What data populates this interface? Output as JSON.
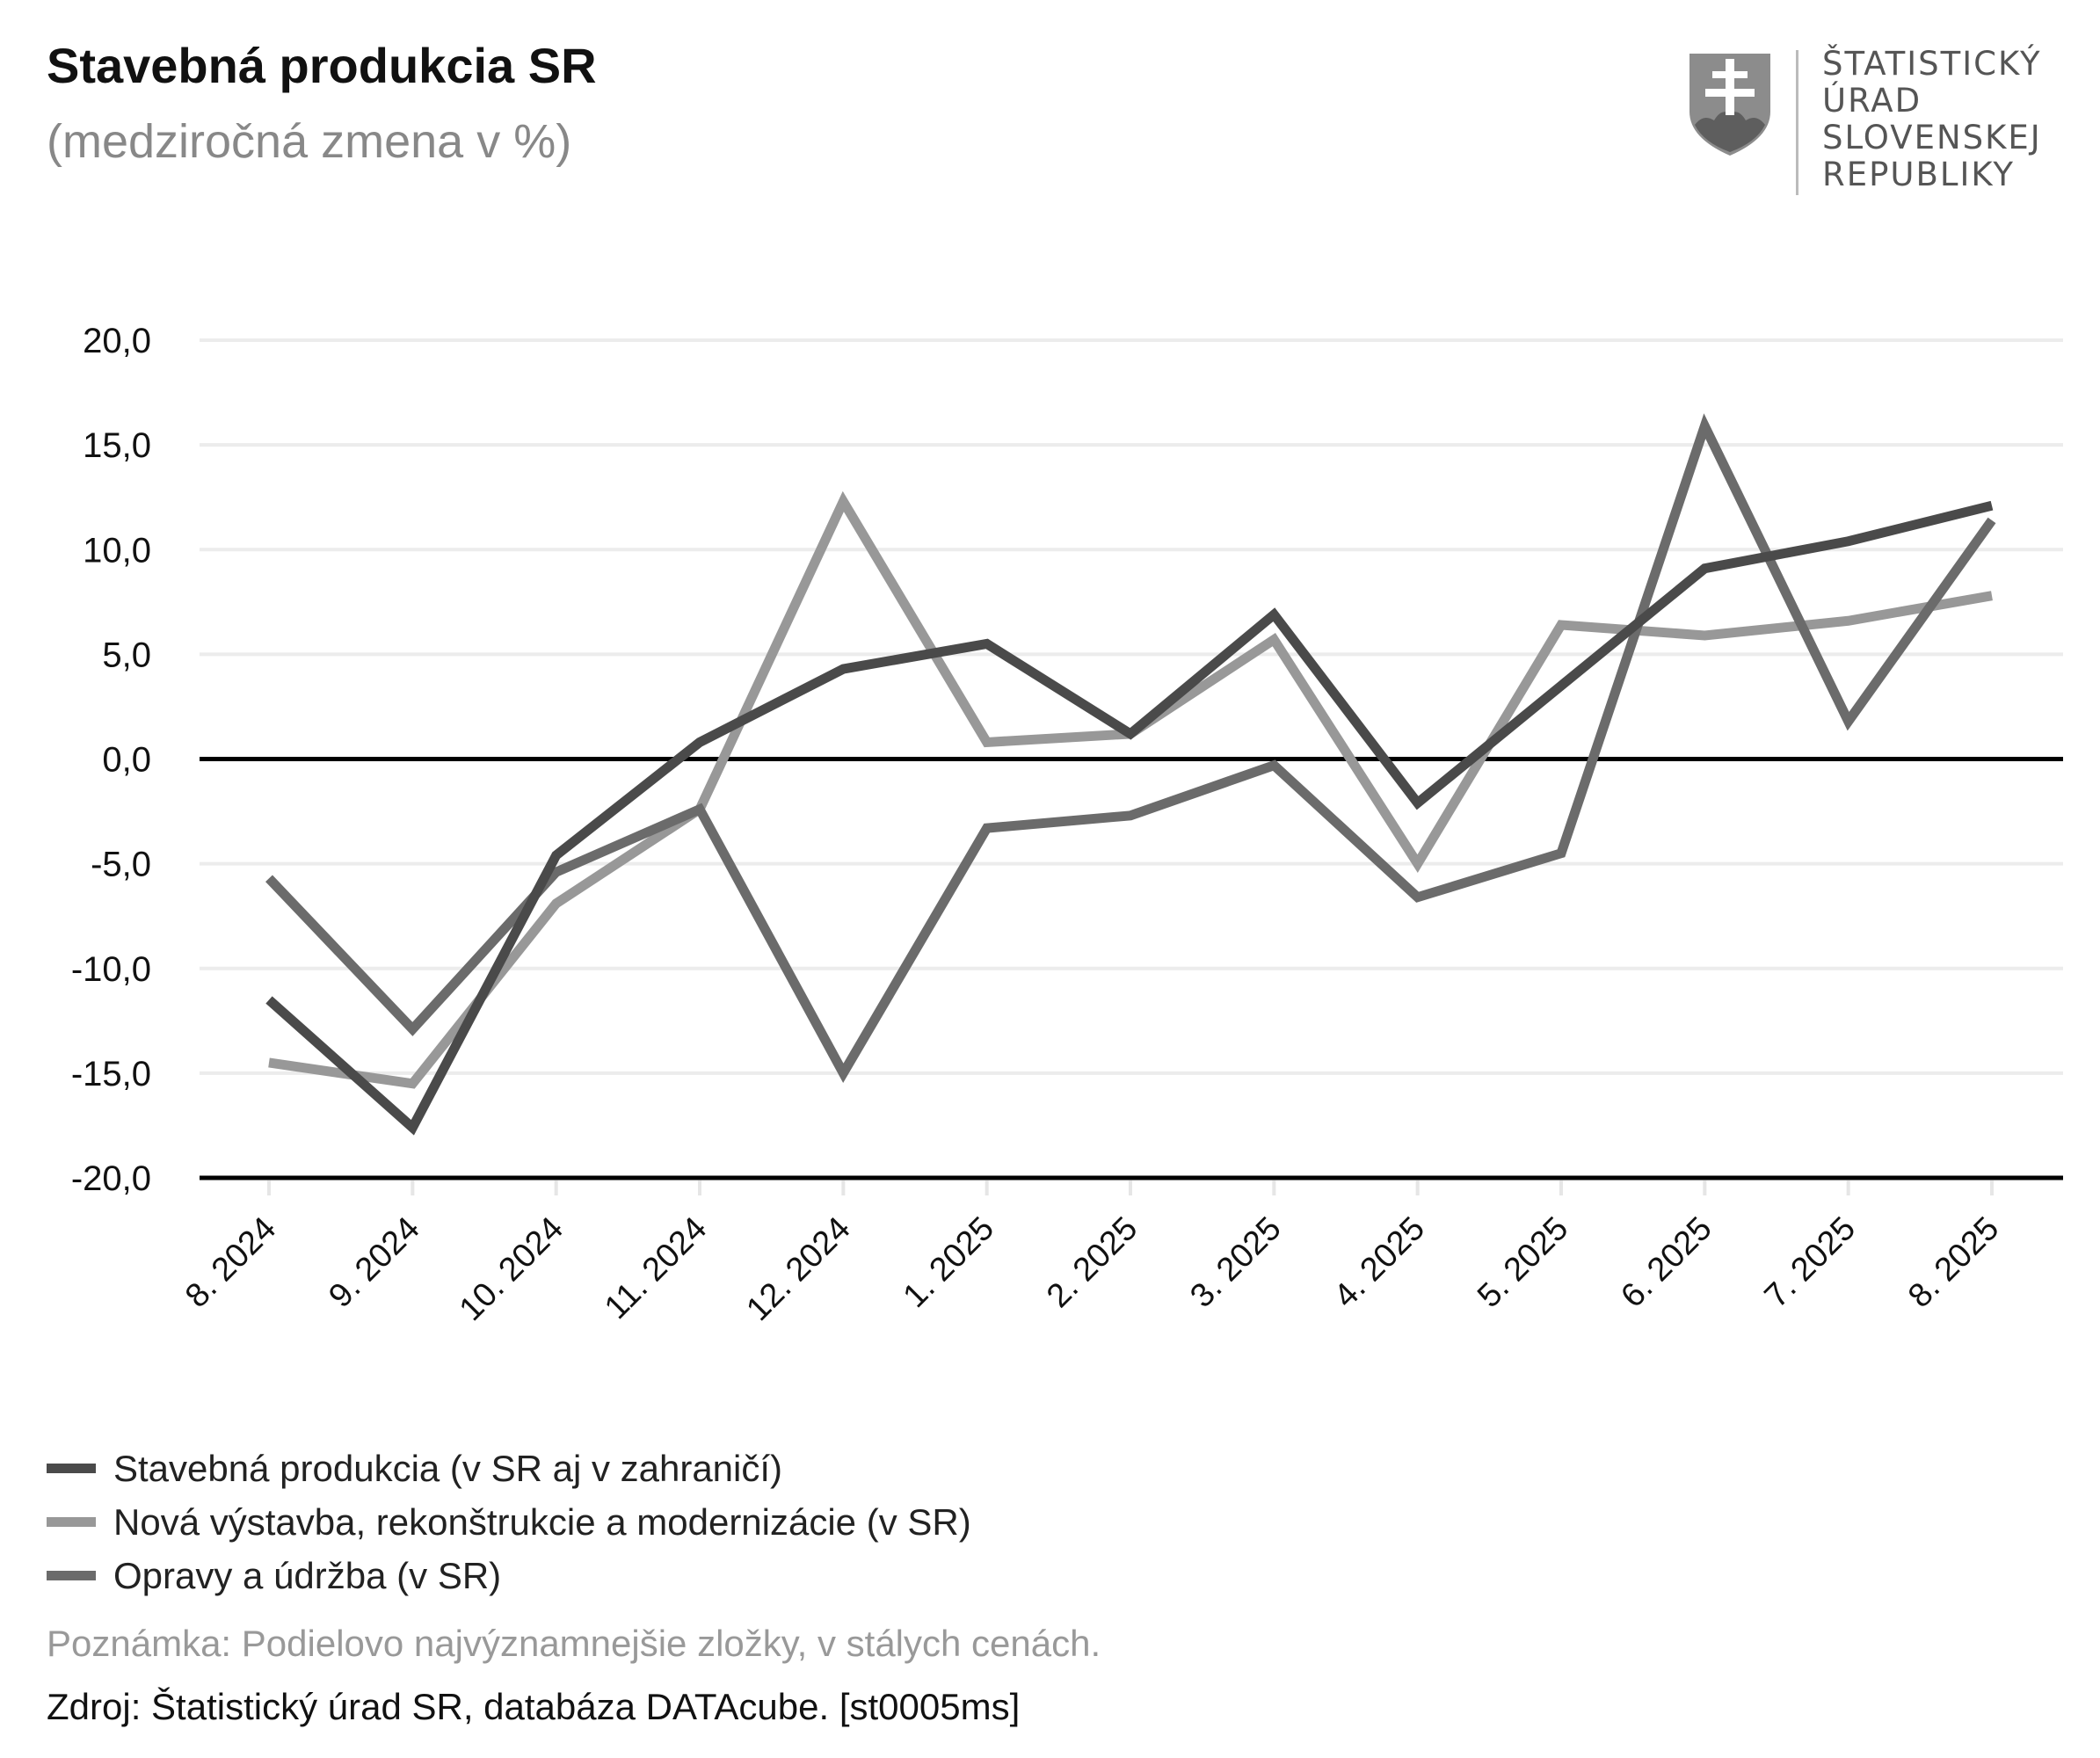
{
  "header": {
    "title": "Stavebná produkcia SR",
    "subtitle": "(medziročná zmena v %)"
  },
  "logo": {
    "lines": [
      "ŠTATISTICKÝ",
      "ÚRAD",
      "SLOVENSKEJ",
      "REPUBLIKY"
    ],
    "icon": "slovak-coat-of-arms-icon"
  },
  "chart_data": {
    "type": "line",
    "title": "Stavebná produkcia SR",
    "subtitle": "(medziročná zmena v %)",
    "categories": [
      "8. 2024",
      "9. 2024",
      "10. 2024",
      "11. 2024",
      "12. 2024",
      "1. 2025",
      "2. 2025",
      "3. 2025",
      "4. 2025",
      "5. 2025",
      "6. 2025",
      "7. 2025",
      "8. 2025"
    ],
    "ylim": [
      -20,
      20
    ],
    "yticks": [
      20,
      15,
      10,
      5,
      0,
      -5,
      -10,
      -15,
      -20
    ],
    "ytick_labels": [
      "20,0",
      "15,0",
      "10,0",
      "5,0",
      "0,0",
      "-5,0",
      "-10,0",
      "-15,0",
      "-20,0"
    ],
    "grid": true,
    "legend_position": "bottom-left",
    "series": [
      {
        "name": "Stavebná produkcia (v SR aj v zahraničí)",
        "color": "#4a4a4a",
        "values": [
          -11.5,
          -17.6,
          -4.6,
          0.8,
          4.3,
          5.5,
          1.2,
          6.9,
          -2.1,
          3.5,
          9.1,
          10.4,
          12.1
        ]
      },
      {
        "name": "Nová výstavba, rekonštrukcie a modernizácie (v SR)",
        "color": "#989898",
        "values": [
          -14.5,
          -15.5,
          -6.9,
          -2.4,
          12.3,
          0.8,
          1.2,
          5.7,
          -5.0,
          6.4,
          5.9,
          6.6,
          7.8
        ]
      },
      {
        "name": "Opravy a údržba (v SR)",
        "color": "#6b6b6b",
        "values": [
          -5.7,
          -12.9,
          -5.4,
          -2.4,
          -15.0,
          -3.3,
          -2.7,
          -0.3,
          -6.6,
          -4.5,
          15.9,
          1.8,
          11.4
        ]
      }
    ]
  },
  "footer": {
    "note": "Poznámka: Podielovo najvýznamnejšie zložky, v stálych cenách.",
    "source": "Zdroj: Štatistický úrad SR, databáza DATAcube. [st0005ms]"
  }
}
